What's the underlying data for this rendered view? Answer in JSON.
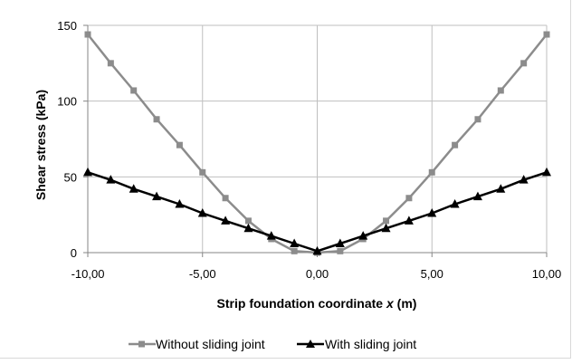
{
  "chart_data": {
    "type": "line",
    "xlabel": "Strip foundation coordinate x (m)",
    "xlabel_parts": {
      "main": "Strip foundation coordinate ",
      "var": "x",
      "unit": " (m)"
    },
    "ylabel": "Shear stress (kPa)",
    "xlim": [
      -10,
      10
    ],
    "ylim": [
      0,
      150
    ],
    "x_ticks": [
      -10,
      -5,
      0,
      5,
      10
    ],
    "x_tick_labels": [
      "-10,00",
      "-5,00",
      "0,00",
      "5,00",
      "10,00"
    ],
    "y_ticks": [
      0,
      50,
      100,
      150
    ],
    "y_tick_labels": [
      "0",
      "50",
      "100",
      "150"
    ],
    "grid": true,
    "legend_position": "bottom",
    "x": [
      -10,
      -9,
      -8,
      -7,
      -6,
      -5,
      -4,
      -3,
      -2,
      -1,
      0,
      1,
      2,
      3,
      4,
      5,
      6,
      7,
      8,
      9,
      10
    ],
    "series": [
      {
        "name": "Without sliding joint",
        "color": "#8c8c8c",
        "marker": "square",
        "values": [
          144,
          125,
          107,
          88,
          71,
          53,
          36,
          21,
          9,
          1,
          0,
          1,
          9,
          21,
          36,
          53,
          71,
          88,
          107,
          125,
          144
        ]
      },
      {
        "name": "With sliding joint",
        "color": "#000000",
        "marker": "triangle",
        "values": [
          53,
          48,
          42,
          37,
          32,
          26,
          21,
          16,
          11,
          6,
          1,
          6,
          11,
          16,
          21,
          26,
          32,
          37,
          42,
          48,
          53
        ]
      }
    ]
  }
}
